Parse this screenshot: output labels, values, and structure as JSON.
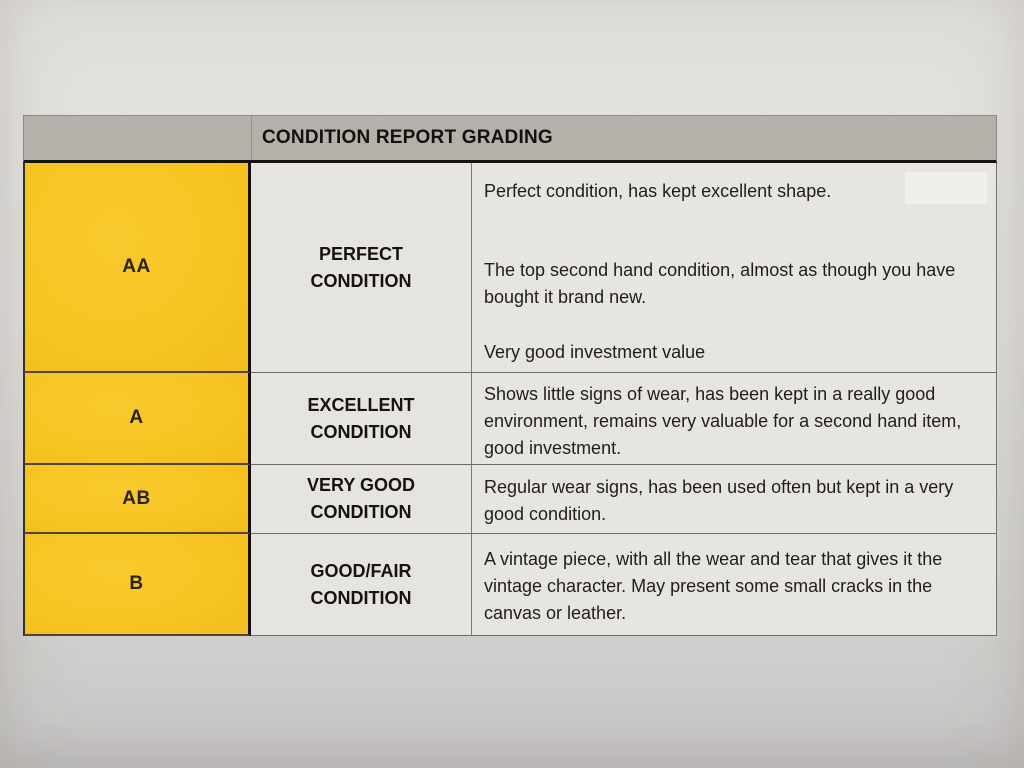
{
  "document": {
    "type": "printed-grading-table-photo",
    "colors": {
      "paper_top": "#e4e2df",
      "paper_bottom": "#c9c7c6",
      "header_bg": "#b4b0aa",
      "grade_column_bg": "#f8c525",
      "cell_bg": "#e7e5e1",
      "text": "#1d1a16",
      "border_dark": "#16130f"
    }
  },
  "table": {
    "title": "CONDITION REPORT GRADING",
    "rows": [
      {
        "grade": "AA",
        "label_lines": [
          "PERFECT",
          "CONDITION"
        ],
        "description_paragraphs": [
          "Perfect condition, has kept excellent shape.",
          "The top second hand condition, almost as though you have bought it brand new.",
          "Very good investment value"
        ]
      },
      {
        "grade": "A",
        "label_lines": [
          "EXCELLENT",
          "CONDITION"
        ],
        "description_paragraphs": [
          "Shows little signs of wear, has been kept in a really good environment, remains very valuable for a second hand item, good investment."
        ]
      },
      {
        "grade": "AB",
        "label_lines": [
          "VERY GOOD",
          "CONDITION"
        ],
        "description_paragraphs": [
          "Regular wear signs, has been used often but kept in a very good condition."
        ]
      },
      {
        "grade": "B",
        "label_lines": [
          "GOOD/FAIR",
          "CONDITION"
        ],
        "description_paragraphs": [
          "A vintage piece, with all the wear and tear that gives it the vintage character. May present some small cracks in the canvas or leather."
        ]
      }
    ]
  }
}
